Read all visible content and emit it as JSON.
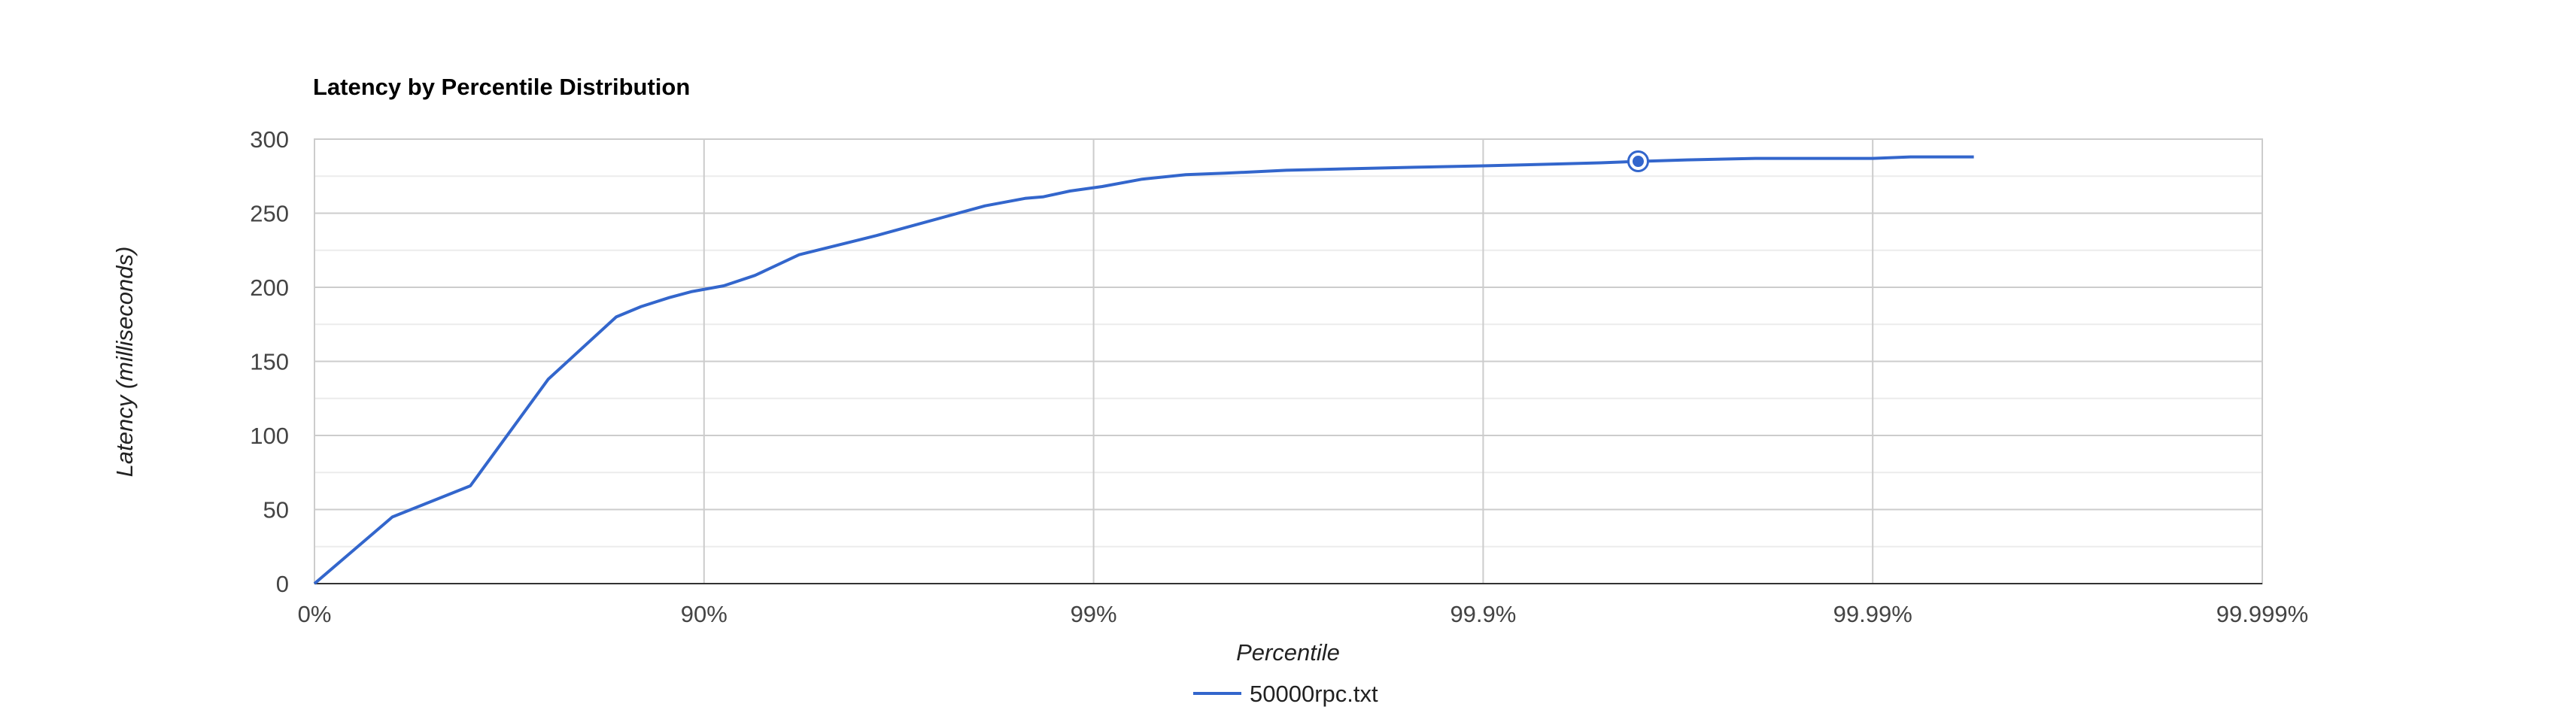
{
  "chart_data": {
    "type": "line",
    "title": "Latency by Percentile Distribution",
    "xlabel": "Percentile",
    "ylabel": "Latency (milliseconds)",
    "x_scale": "log-percentile",
    "x_ticks": [
      "0%",
      "90%",
      "99%",
      "99.9%",
      "99.99%",
      "99.999%"
    ],
    "y_ticks": [
      "0",
      "50",
      "100",
      "150",
      "200",
      "250",
      "300"
    ],
    "ylim": [
      0,
      300
    ],
    "grid": true,
    "legend_position": "bottom",
    "series": [
      {
        "name": "50000rpc.txt",
        "color": "#3366cc",
        "points": [
          {
            "percentile": 0,
            "latency": 0
          },
          {
            "percentile": 36.9,
            "latency": 45
          },
          {
            "percentile": 60.2,
            "latency": 66
          },
          {
            "percentile": 74.9,
            "latency": 138
          },
          {
            "percentile": 83.2,
            "latency": 180
          },
          {
            "percentile": 85.5,
            "latency": 187
          },
          {
            "percentile": 87.7,
            "latency": 193
          },
          {
            "percentile": 89.2,
            "latency": 197
          },
          {
            "percentile": 91.1,
            "latency": 201
          },
          {
            "percentile": 92.6,
            "latency": 208
          },
          {
            "percentile": 94.3,
            "latency": 222
          },
          {
            "percentile": 96.4,
            "latency": 235
          },
          {
            "percentile": 98.1,
            "latency": 255
          },
          {
            "percentile": 98.5,
            "latency": 260
          },
          {
            "percentile": 98.65,
            "latency": 261
          },
          {
            "percentile": 98.85,
            "latency": 265
          },
          {
            "percentile": 99.05,
            "latency": 268
          },
          {
            "percentile": 99.25,
            "latency": 273
          },
          {
            "percentile": 99.42,
            "latency": 276
          },
          {
            "percentile": 99.54,
            "latency": 277
          },
          {
            "percentile": 99.68,
            "latency": 279
          },
          {
            "percentile": 99.78,
            "latency": 280
          },
          {
            "percentile": 99.85,
            "latency": 281
          },
          {
            "percentile": 99.9,
            "latency": 282
          },
          {
            "percentile": 99.93,
            "latency": 283
          },
          {
            "percentile": 99.95,
            "latency": 284
          },
          {
            "percentile": 99.96,
            "latency": 285
          },
          {
            "percentile": 99.97,
            "latency": 286
          },
          {
            "percentile": 99.98,
            "latency": 287
          },
          {
            "percentile": 99.985,
            "latency": 287
          },
          {
            "percentile": 99.99,
            "latency": 287
          },
          {
            "percentile": 99.992,
            "latency": 288
          },
          {
            "percentile": 99.9945,
            "latency": 288
          }
        ]
      }
    ],
    "highlighted_point": {
      "percentile": 99.96,
      "latency": 285
    }
  }
}
